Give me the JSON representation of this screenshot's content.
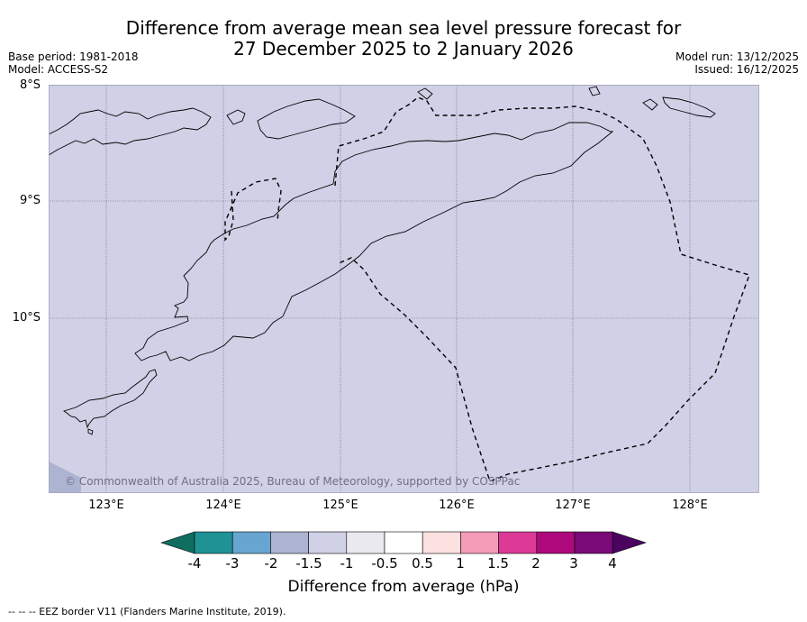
{
  "title": {
    "line1": "Difference from average mean sea level pressure forecast for",
    "line2": "27 December 2025 to 2 January 2026"
  },
  "meta_left": {
    "base_period": "Base period: 1981-2018",
    "model": "Model: ACCESS-S2"
  },
  "meta_right": {
    "model_run": "Model run: 13/12/2025",
    "issued": "Issued: 16/12/2025"
  },
  "map": {
    "fill_color": "#d0d0e6",
    "lat_labels": [
      "8°S",
      "9°S",
      "10°S"
    ],
    "lon_labels": [
      "123°E",
      "124°E",
      "125°E",
      "126°E",
      "127°E",
      "128°E"
    ],
    "copyright": "© Commonwealth of Australia 2025, Bureau of Meteorology, supported by COSPPac"
  },
  "colorbar": {
    "colors": [
      "#0f6e5f",
      "#1f9296",
      "#66a6d0",
      "#adb4d2",
      "#d0d0e6",
      "#ebe9f0",
      "#ffffff",
      "#fde0e0",
      "#f49cb8",
      "#dc3a96",
      "#ad087c",
      "#7a0a77",
      "#4a0460"
    ],
    "tick_labels": [
      "-4",
      "-3",
      "-2",
      "-1.5",
      "-1",
      "-0.5",
      "0.5",
      "1",
      "1.5",
      "2",
      "3",
      "4"
    ],
    "title": "Difference from average (hPa)"
  },
  "footnote": "--  --  -- EEZ border V11 (Flanders Marine Institute, 2019)."
}
